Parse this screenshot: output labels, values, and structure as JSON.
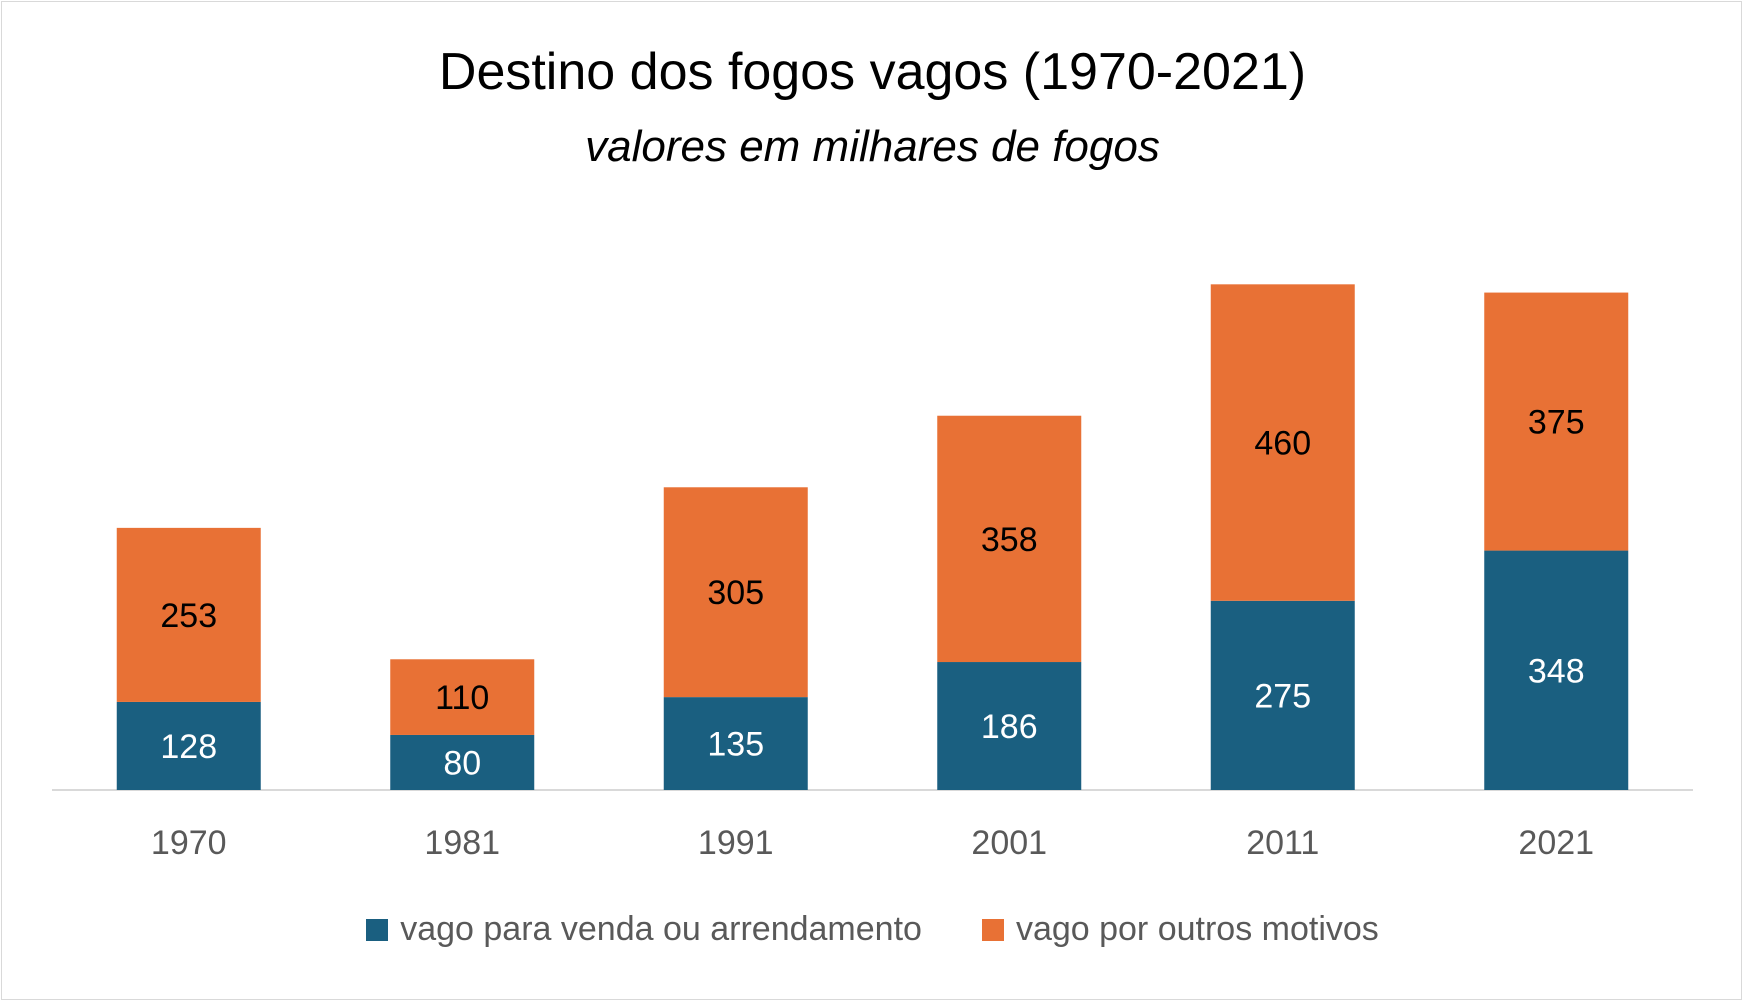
{
  "chart_data": {
    "type": "bar",
    "stacked": true,
    "title": "Destino dos fogos vagos (1970-2021)",
    "subtitle": "valores em milhares de fogos",
    "categories": [
      "1970",
      "1981",
      "1991",
      "2001",
      "2011",
      "2021"
    ],
    "series": [
      {
        "name": "vago para venda ou arrendamento",
        "values": [
          128,
          80,
          135,
          186,
          275,
          348
        ],
        "color": "#1a5f80",
        "label_color": "#ffffff"
      },
      {
        "name": "vago por outros motivos",
        "values": [
          253,
          110,
          305,
          358,
          460,
          375
        ],
        "color": "#e87135",
        "label_color": "#000000"
      }
    ],
    "ylim": [
      0,
      800
    ],
    "grid": false,
    "legend_position": "bottom"
  }
}
